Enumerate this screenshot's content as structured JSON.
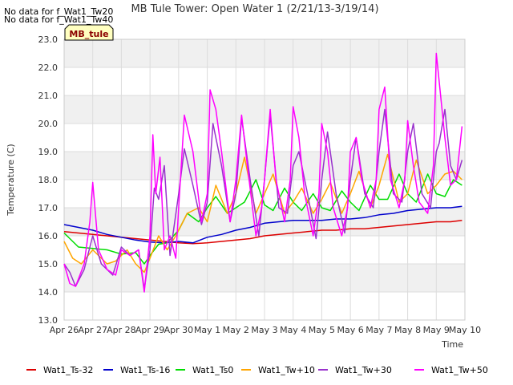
{
  "notices": [
    "No data for f_Wat1_Tw20",
    "No data for f_Wat1_Tw40"
  ],
  "station_label": "MB_tule",
  "colors": {
    "band": "#f0f0f0",
    "grid": "#dcdcdc",
    "station_fill": "#ffffc0"
  },
  "chart_data": {
    "type": "line",
    "title": "MB Tule Tower: Open Water 1 (2/21/13-3/19/14)",
    "xlabel": "Time",
    "ylabel": "Temperature (C)",
    "xlim": [
      0,
      14
    ],
    "ylim": [
      13.0,
      23.0
    ],
    "xticks": [
      {
        "x": 0,
        "label": "Apr 26"
      },
      {
        "x": 1,
        "label": "Apr 27"
      },
      {
        "x": 2,
        "label": "Apr 28"
      },
      {
        "x": 3,
        "label": "Apr 29"
      },
      {
        "x": 4,
        "label": "Apr 30"
      },
      {
        "x": 5,
        "label": "May 1"
      },
      {
        "x": 6,
        "label": "May 2"
      },
      {
        "x": 7,
        "label": "May 3"
      },
      {
        "x": 8,
        "label": "May 4"
      },
      {
        "x": 9,
        "label": "May 5"
      },
      {
        "x": 10,
        "label": "May 6"
      },
      {
        "x": 11,
        "label": "May 7"
      },
      {
        "x": 12,
        "label": "May 8"
      },
      {
        "x": 13,
        "label": "May 9"
      },
      {
        "x": 14,
        "label": "May 10"
      }
    ],
    "yticks": [
      "13.0",
      "14.0",
      "15.0",
      "16.0",
      "17.0",
      "18.0",
      "19.0",
      "20.0",
      "21.0",
      "22.0",
      "23.0"
    ],
    "grid": true,
    "legend_position": "bottom",
    "series": [
      {
        "name": "Wat1_Ts-32",
        "color": "#dd0000",
        "x": [
          0,
          0.5,
          1,
          1.5,
          2,
          2.5,
          3,
          3.5,
          4,
          4.5,
          5,
          5.5,
          6,
          6.5,
          7,
          7.5,
          8,
          8.5,
          9,
          9.5,
          10,
          10.5,
          11,
          11.5,
          12,
          12.5,
          13,
          13.5,
          13.9
        ],
        "y": [
          16.15,
          16.1,
          16.05,
          16.0,
          15.95,
          15.9,
          15.85,
          15.8,
          15.75,
          15.72,
          15.75,
          15.8,
          15.85,
          15.9,
          16.0,
          16.05,
          16.1,
          16.15,
          16.2,
          16.2,
          16.25,
          16.25,
          16.3,
          16.35,
          16.4,
          16.45,
          16.5,
          16.5,
          16.55
        ]
      },
      {
        "name": "Wat1_Ts-16",
        "color": "#0000cc",
        "x": [
          0,
          0.5,
          1,
          1.5,
          2,
          2.5,
          3,
          3.5,
          4,
          4.5,
          5,
          5.5,
          6,
          6.5,
          7,
          7.5,
          8,
          8.5,
          9,
          9.5,
          10,
          10.5,
          11,
          11.5,
          12,
          12.5,
          13,
          13.5,
          13.9
        ],
        "y": [
          16.4,
          16.3,
          16.2,
          16.05,
          15.95,
          15.85,
          15.78,
          15.75,
          15.8,
          15.75,
          15.95,
          16.05,
          16.2,
          16.3,
          16.45,
          16.5,
          16.55,
          16.55,
          16.55,
          16.6,
          16.6,
          16.65,
          16.75,
          16.8,
          16.9,
          16.95,
          17.0,
          17.0,
          17.05
        ]
      },
      {
        "name": "Wat1_Ts0",
        "color": "#00dd00",
        "x": [
          0,
          0.5,
          1,
          1.5,
          2,
          2.5,
          2.8,
          3,
          3.3,
          3.6,
          4,
          4.3,
          4.7,
          5,
          5.3,
          5.7,
          6,
          6.3,
          6.7,
          7,
          7.3,
          7.7,
          8,
          8.3,
          8.7,
          9,
          9.3,
          9.7,
          10,
          10.3,
          10.7,
          11,
          11.3,
          11.7,
          12,
          12.3,
          12.7,
          13,
          13.3,
          13.6,
          13.9
        ],
        "y": [
          16.1,
          15.6,
          15.55,
          15.5,
          15.35,
          15.4,
          15.0,
          15.3,
          15.7,
          15.75,
          16.2,
          16.8,
          16.5,
          17.0,
          17.4,
          16.8,
          17.0,
          17.2,
          18.0,
          17.1,
          16.9,
          17.7,
          17.2,
          16.9,
          17.5,
          17.0,
          16.9,
          17.6,
          17.2,
          16.9,
          17.8,
          17.3,
          17.3,
          18.2,
          17.5,
          17.2,
          18.2,
          17.5,
          17.4,
          18.0,
          17.8
        ]
      },
      {
        "name": "Wat1_Tw+10",
        "color": "#ffa500",
        "x": [
          0,
          0.3,
          0.6,
          1,
          1.5,
          1.8,
          2.2,
          2.5,
          2.8,
          3,
          3.3,
          3.6,
          3.9,
          4.3,
          4.7,
          5,
          5.3,
          5.7,
          6,
          6.3,
          6.7,
          7,
          7.3,
          7.7,
          8,
          8.3,
          8.7,
          9,
          9.3,
          9.7,
          10,
          10.3,
          10.7,
          11,
          11.3,
          11.7,
          12,
          12.3,
          12.7,
          13,
          13.3,
          13.6,
          13.9
        ],
        "y": [
          15.8,
          15.2,
          15.0,
          15.5,
          15.0,
          15.1,
          15.5,
          15.0,
          14.7,
          15.2,
          16.0,
          15.5,
          16.0,
          16.8,
          17.0,
          16.5,
          17.8,
          16.8,
          17.5,
          18.8,
          16.8,
          17.5,
          18.2,
          16.8,
          17.2,
          17.7,
          16.8,
          17.3,
          17.9,
          16.8,
          17.5,
          18.3,
          17.0,
          17.8,
          18.9,
          17.2,
          17.5,
          18.7,
          17.5,
          17.8,
          18.2,
          18.3,
          18.0
        ]
      },
      {
        "name": "Wat1_Tw+30",
        "color": "#9932cc",
        "x": [
          0,
          0.2,
          0.4,
          0.7,
          1,
          1.3,
          1.7,
          2,
          2.3,
          2.6,
          2.8,
          3,
          3.15,
          3.3,
          3.5,
          3.7,
          4,
          4.2,
          4.5,
          4.8,
          5,
          5.2,
          5.5,
          5.8,
          6,
          6.2,
          6.5,
          6.8,
          7,
          7.2,
          7.5,
          7.8,
          8,
          8.2,
          8.5,
          8.8,
          9,
          9.2,
          9.5,
          9.8,
          10,
          10.2,
          10.5,
          10.8,
          11,
          11.2,
          11.5,
          11.8,
          12,
          12.2,
          12.5,
          12.8,
          13,
          13.1,
          13.3,
          13.5,
          13.7,
          13.9
        ],
        "y": [
          15.0,
          14.7,
          14.2,
          14.8,
          16.0,
          15.0,
          14.6,
          15.6,
          15.3,
          15.5,
          14.1,
          15.5,
          17.7,
          17.3,
          18.5,
          15.3,
          17.5,
          19.1,
          17.8,
          16.4,
          17.2,
          20.0,
          18.5,
          16.5,
          17.5,
          20.2,
          18.0,
          16.0,
          18.0,
          20.3,
          17.0,
          16.8,
          18.5,
          19.0,
          17.5,
          15.9,
          18.0,
          19.7,
          17.5,
          16.1,
          18.0,
          19.5,
          17.5,
          17.0,
          19.0,
          20.5,
          17.5,
          17.2,
          19.0,
          20.0,
          17.5,
          17.0,
          19.0,
          19.3,
          20.5,
          18.5,
          18.0,
          18.7
        ]
      },
      {
        "name": "Wat1_Tw+50",
        "color": "#ff00ff",
        "x": [
          0,
          0.2,
          0.4,
          0.7,
          0.9,
          1,
          1.2,
          1.5,
          1.8,
          2,
          2.3,
          2.6,
          2.8,
          3,
          3.1,
          3.2,
          3.35,
          3.5,
          3.7,
          3.9,
          4,
          4.2,
          4.5,
          4.8,
          5,
          5.1,
          5.3,
          5.5,
          5.8,
          6,
          6.2,
          6.4,
          6.7,
          6.9,
          7,
          7.2,
          7.4,
          7.7,
          7.9,
          8,
          8.2,
          8.4,
          8.7,
          8.9,
          9,
          9.2,
          9.4,
          9.7,
          9.9,
          10,
          10.2,
          10.4,
          10.7,
          10.9,
          11,
          11.2,
          11.4,
          11.7,
          11.9,
          12,
          12.2,
          12.4,
          12.7,
          12.9,
          13,
          13.1,
          13.3,
          13.5,
          13.7,
          13.9
        ],
        "y": [
          15.0,
          14.3,
          14.2,
          15.0,
          16.5,
          17.9,
          15.5,
          14.8,
          14.6,
          15.5,
          15.3,
          15.5,
          14.0,
          16.0,
          19.6,
          17.5,
          18.8,
          15.5,
          16.0,
          15.2,
          17.0,
          20.3,
          19.0,
          16.5,
          17.5,
          21.2,
          20.5,
          19.0,
          16.5,
          18.0,
          20.3,
          18.5,
          16.0,
          17.0,
          18.0,
          20.5,
          18.0,
          16.5,
          18.0,
          20.6,
          19.5,
          17.5,
          16.0,
          17.5,
          20.0,
          19.0,
          17.0,
          16.0,
          17.0,
          19.0,
          19.5,
          18.0,
          17.0,
          18.0,
          20.5,
          21.3,
          18.0,
          17.0,
          18.0,
          20.1,
          18.5,
          17.2,
          16.8,
          18.5,
          22.5,
          21.5,
          19.5,
          17.8,
          18.0,
          19.9
        ]
      }
    ]
  }
}
